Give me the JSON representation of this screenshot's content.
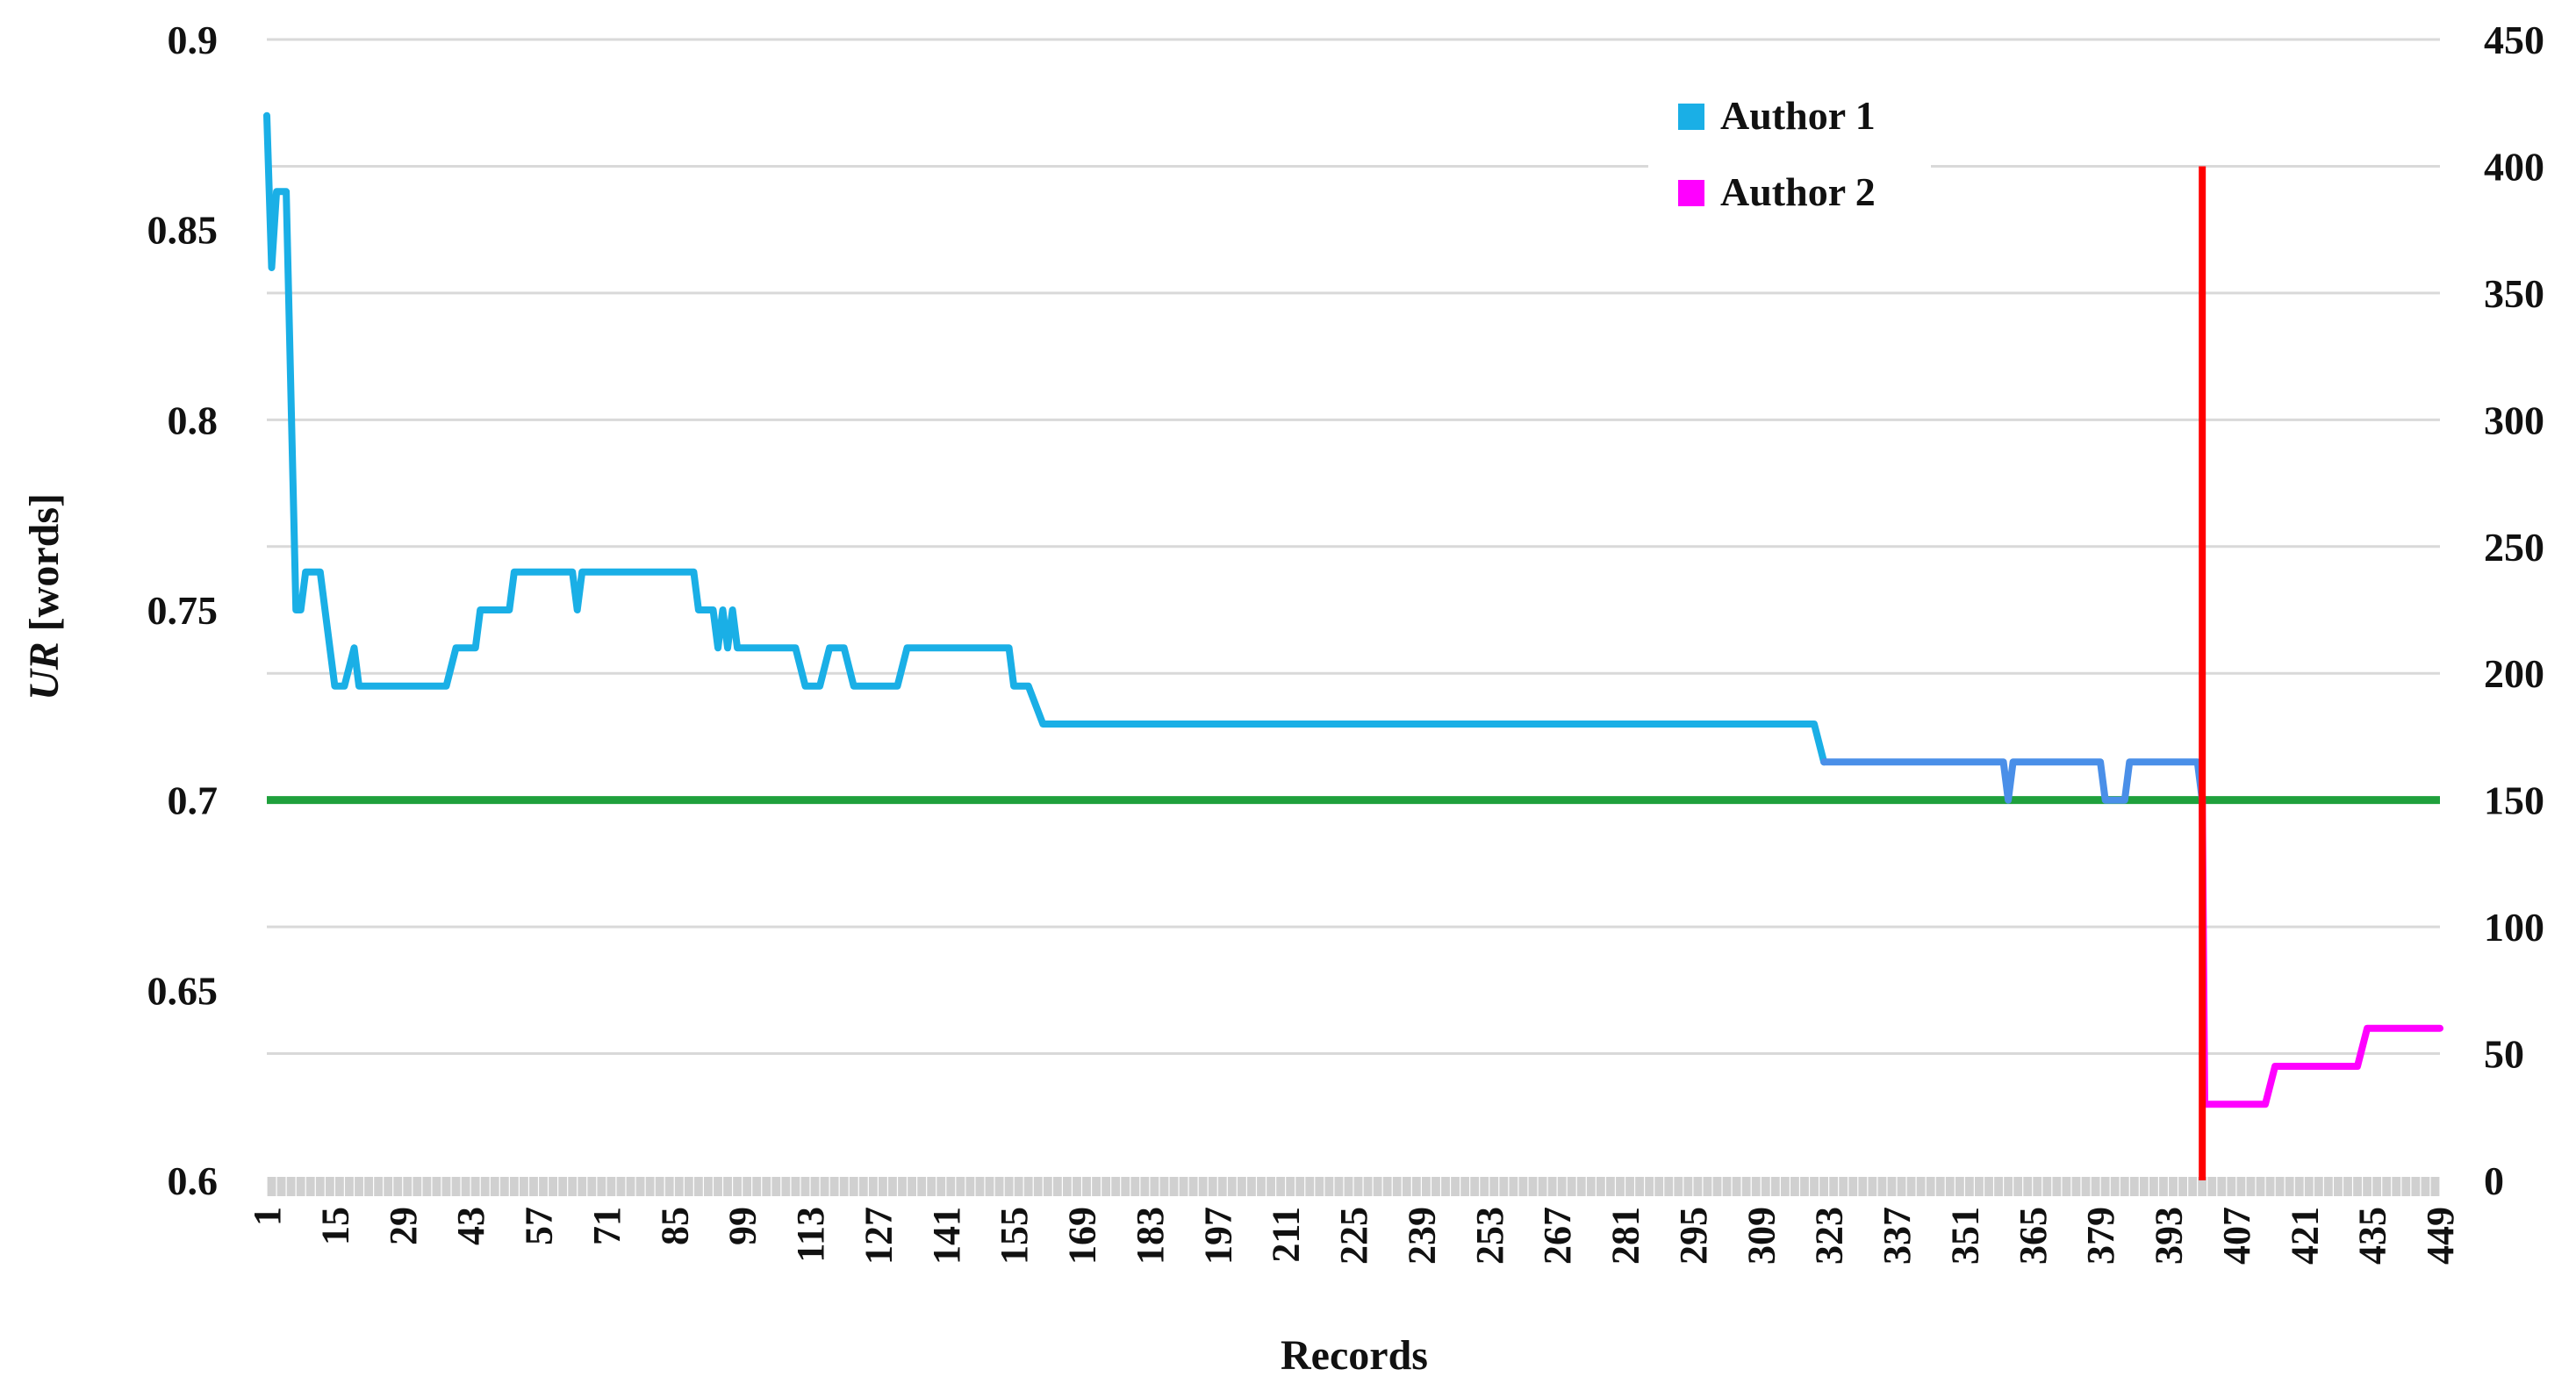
{
  "chart_data": {
    "type": "line",
    "xlabel": "Records",
    "ylabel": "UR [words]",
    "ylabel_unit": " [words]",
    "ylabel_italic": "UR",
    "ylim": [
      0.6,
      0.9
    ],
    "y2lim": [
      0,
      450
    ],
    "xlim": [
      1,
      449
    ],
    "y_ticks": [
      "0.6",
      "0.65",
      "0.7",
      "0.75",
      "0.8",
      "0.85",
      "0.9"
    ],
    "y2_ticks": [
      "0",
      "50",
      "100",
      "150",
      "200",
      "250",
      "300",
      "350",
      "400",
      "450"
    ],
    "x_ticks": [
      "1",
      "15",
      "29",
      "43",
      "57",
      "71",
      "85",
      "99",
      "113",
      "127",
      "141",
      "155",
      "169",
      "183",
      "197",
      "211",
      "225",
      "239",
      "253",
      "267",
      "281",
      "295",
      "309",
      "323",
      "337",
      "351",
      "365",
      "379",
      "393",
      "407",
      "421",
      "435",
      "449"
    ],
    "grid": "horizontal",
    "legend_position": "top-right",
    "colors": {
      "author1": "#1AAFE6",
      "author1_tail": "#4A8FE8",
      "author2": "#FF00FF",
      "threshold": "#1FA03C",
      "boundary": "#FF0000",
      "grid": "#D9D9D9",
      "tick_band": "#D0D0D0"
    },
    "series": [
      {
        "name": "Author 1",
        "points": [
          [
            1,
            0.88
          ],
          [
            2,
            0.84
          ],
          [
            3,
            0.86
          ],
          [
            5,
            0.86
          ],
          [
            7,
            0.75
          ],
          [
            8,
            0.75
          ],
          [
            9,
            0.76
          ],
          [
            12,
            0.76
          ],
          [
            15,
            0.73
          ],
          [
            17,
            0.73
          ],
          [
            19,
            0.74
          ],
          [
            20,
            0.73
          ],
          [
            38,
            0.73
          ],
          [
            40,
            0.74
          ],
          [
            44,
            0.74
          ],
          [
            45,
            0.75
          ],
          [
            51,
            0.75
          ],
          [
            52,
            0.76
          ],
          [
            64,
            0.76
          ],
          [
            65,
            0.75
          ],
          [
            66,
            0.76
          ],
          [
            89,
            0.76
          ],
          [
            90,
            0.75
          ],
          [
            93,
            0.75
          ],
          [
            94,
            0.74
          ],
          [
            95,
            0.75
          ],
          [
            96,
            0.74
          ],
          [
            97,
            0.75
          ],
          [
            98,
            0.74
          ],
          [
            110,
            0.74
          ],
          [
            112,
            0.73
          ],
          [
            115,
            0.73
          ],
          [
            117,
            0.74
          ],
          [
            120,
            0.74
          ],
          [
            122,
            0.73
          ],
          [
            131,
            0.73
          ],
          [
            133,
            0.74
          ],
          [
            154,
            0.74
          ],
          [
            155,
            0.73
          ],
          [
            158,
            0.73
          ],
          [
            161,
            0.72
          ],
          [
            320,
            0.72
          ],
          [
            322,
            0.71
          ],
          [
            359,
            0.71
          ],
          [
            360,
            0.7
          ],
          [
            361,
            0.71
          ],
          [
            379,
            0.71
          ],
          [
            380,
            0.7
          ],
          [
            384,
            0.7
          ],
          [
            385,
            0.71
          ],
          [
            399,
            0.71
          ],
          [
            400,
            0.7
          ]
        ]
      },
      {
        "name": "Author 2",
        "points": [
          [
            400,
            0.7
          ],
          [
            400.5,
            0.62
          ],
          [
            413,
            0.62
          ],
          [
            415,
            0.63
          ],
          [
            432,
            0.63
          ],
          [
            434,
            0.64
          ],
          [
            449,
            0.64
          ]
        ]
      }
    ],
    "threshold_y": 0.7,
    "boundary_x": 400,
    "boundary_y2_top": 400
  }
}
